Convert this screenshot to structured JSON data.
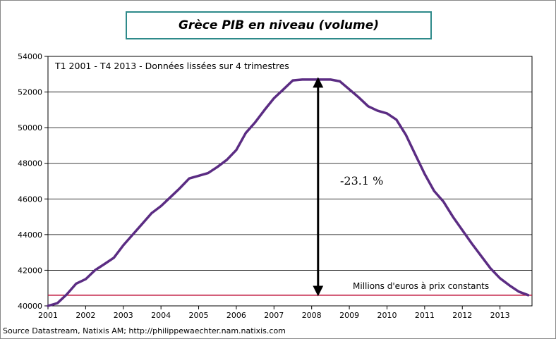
{
  "chart_data": {
    "type": "line",
    "title": "Grèce PIB en niveau (volume)",
    "subtitle": "T1 2001 - T4 2013 - Données lissées  sur 4 trimestres",
    "ylim": [
      40000,
      54000
    ],
    "yticks": [
      40000,
      42000,
      44000,
      46000,
      48000,
      50000,
      52000,
      54000
    ],
    "xlim": [
      2001,
      2013.85
    ],
    "xticks": [
      2001,
      2002,
      2003,
      2004,
      2005,
      2006,
      2007,
      2008,
      2009,
      2010,
      2011,
      2012,
      2013
    ],
    "grid": true,
    "series": [
      {
        "color": "#5b2c83",
        "x": [
          2001.0,
          2001.25,
          2001.5,
          2001.75,
          2002.0,
          2002.25,
          2002.5,
          2002.75,
          2003.0,
          2003.25,
          2003.5,
          2003.75,
          2004.0,
          2004.25,
          2004.5,
          2004.75,
          2005.0,
          2005.25,
          2005.5,
          2005.75,
          2006.0,
          2006.25,
          2006.5,
          2006.75,
          2007.0,
          2007.25,
          2007.5,
          2007.75,
          2008.0,
          2008.25,
          2008.5,
          2008.75,
          2009.0,
          2009.25,
          2009.5,
          2009.75,
          2010.0,
          2010.25,
          2010.5,
          2010.75,
          2011.0,
          2011.25,
          2011.5,
          2011.75,
          2012.0,
          2012.25,
          2012.5,
          2012.75,
          2013.0,
          2013.25,
          2013.5,
          2013.75
        ],
        "values": [
          40000,
          40150,
          40650,
          41250,
          41500,
          42000,
          42350,
          42700,
          43400,
          44000,
          44600,
          45200,
          45600,
          46100,
          46600,
          47150,
          47300,
          47450,
          47800,
          48200,
          48750,
          49700,
          50300,
          51000,
          51650,
          52150,
          52650,
          52700,
          52700,
          52700,
          52700,
          52600,
          52150,
          51700,
          51200,
          50950,
          50800,
          50450,
          49600,
          48500,
          47400,
          46450,
          45850,
          45000,
          44250,
          43500,
          42800,
          42100,
          41550,
          41150,
          40800,
          40600
        ]
      }
    ],
    "reference_line": {
      "value": 40600,
      "color": "#c0143c"
    },
    "annotations": {
      "drop_label": "-23.1 %",
      "arrow_from": 52700,
      "arrow_to": 40600,
      "arrow_x": 2008.17,
      "unit_note": "Millions  d'euros  à prix  constants"
    },
    "source": "Source Datastream, Natixis AM; http://philippewaechter.nam.natixis.com"
  }
}
